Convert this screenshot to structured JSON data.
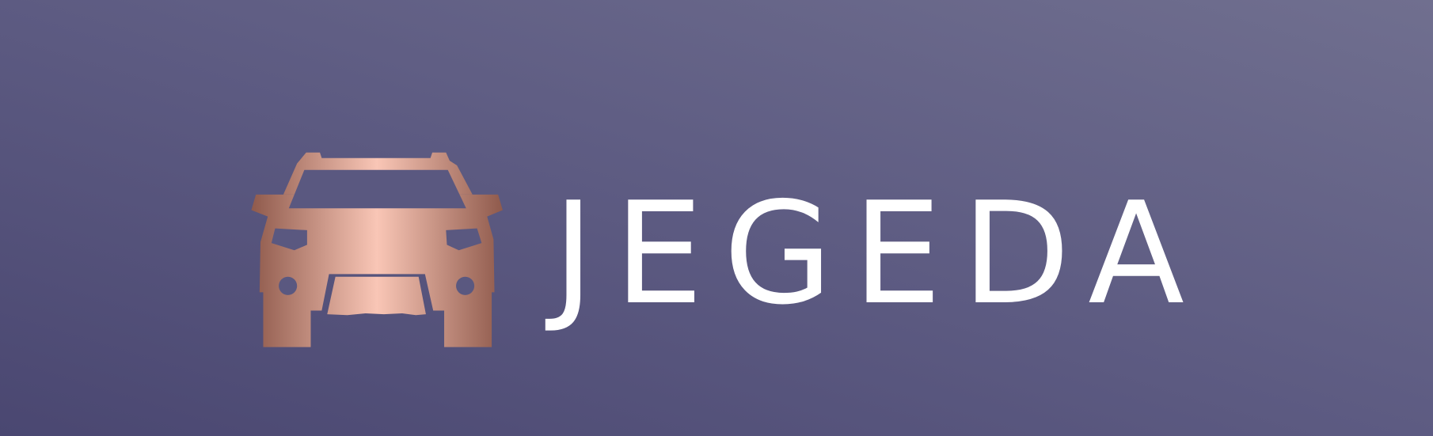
{
  "logo": {
    "name": "JEGEDA"
  }
}
